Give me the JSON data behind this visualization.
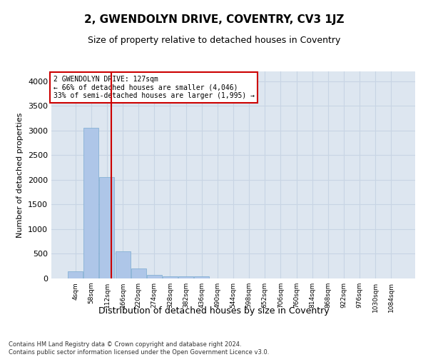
{
  "title": "2, GWENDOLYN DRIVE, COVENTRY, CV3 1JZ",
  "subtitle": "Size of property relative to detached houses in Coventry",
  "xlabel": "Distribution of detached houses by size in Coventry",
  "ylabel": "Number of detached properties",
  "bar_labels": [
    "4sqm",
    "58sqm",
    "112sqm",
    "166sqm",
    "220sqm",
    "274sqm",
    "328sqm",
    "382sqm",
    "436sqm",
    "490sqm",
    "544sqm",
    "598sqm",
    "652sqm",
    "706sqm",
    "760sqm",
    "814sqm",
    "868sqm",
    "922sqm",
    "976sqm",
    "1030sqm",
    "1084sqm"
  ],
  "bar_values": [
    150,
    3050,
    2050,
    550,
    200,
    75,
    50,
    40,
    50,
    5,
    0,
    0,
    0,
    0,
    0,
    0,
    0,
    0,
    0,
    0,
    0
  ],
  "bar_color": "#aec6e8",
  "bar_edge_color": "#7aaad0",
  "grid_color": "#c8d4e4",
  "bg_color": "#dde6f0",
  "red_line_x": 2.27,
  "annotation_text": "2 GWENDOLYN DRIVE: 127sqm\n← 66% of detached houses are smaller (4,046)\n33% of semi-detached houses are larger (1,995) →",
  "annotation_box_color": "#ffffff",
  "annotation_border_color": "#cc0000",
  "ylim": [
    0,
    4200
  ],
  "yticks": [
    0,
    500,
    1000,
    1500,
    2000,
    2500,
    3000,
    3500,
    4000
  ],
  "footer_line1": "Contains HM Land Registry data © Crown copyright and database right 2024.",
  "footer_line2": "Contains public sector information licensed under the Open Government Licence v3.0."
}
